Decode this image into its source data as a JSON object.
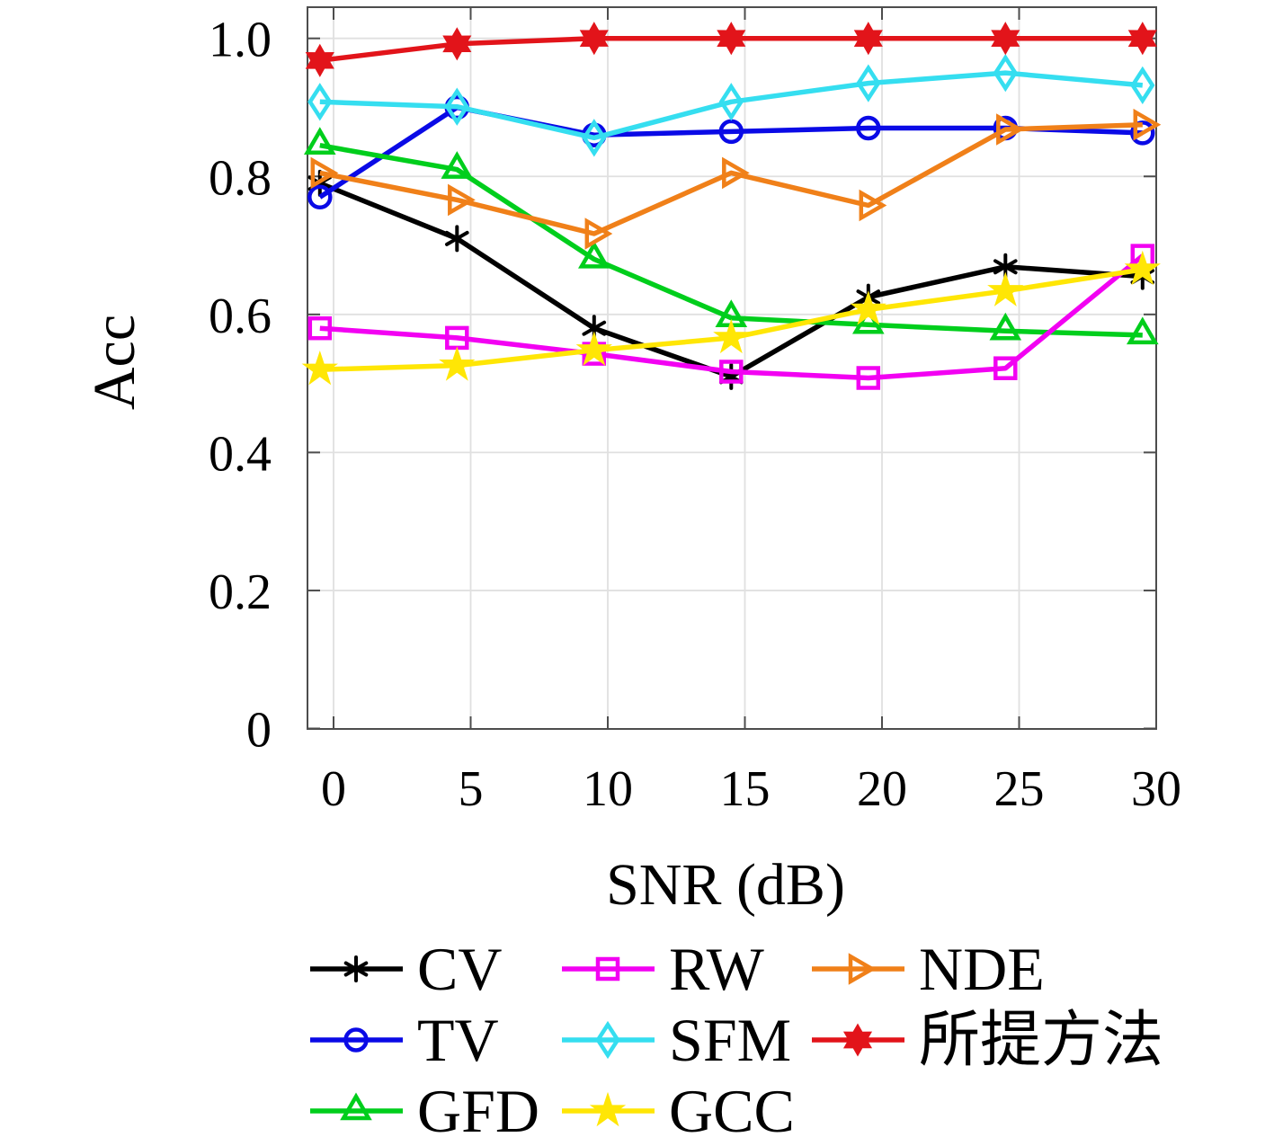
{
  "chart_data": {
    "type": "line",
    "title": "",
    "xlabel": "SNR (dB)",
    "ylabel": "Acc",
    "x": [
      0,
      5,
      10,
      15,
      20,
      25,
      30
    ],
    "x_tick_labels": [
      "0",
      "5",
      "10",
      "15",
      "20",
      "25",
      "30"
    ],
    "y_ticks": [
      0,
      0.2,
      0.4,
      0.6,
      0.8,
      1.0
    ],
    "y_tick_labels": [
      "0",
      "0.2",
      "0.4",
      "0.6",
      "0.8",
      "1.0"
    ],
    "xlim": [
      -1,
      30
    ],
    "ylim": [
      0,
      1.045
    ],
    "x_plot_offset": -0.5,
    "grid": true,
    "legend_position": "below",
    "legend_columns": 3,
    "series": [
      {
        "name": "CV",
        "color": "#000000",
        "marker": "asterisk",
        "values": [
          0.79,
          0.71,
          0.58,
          0.51,
          0.625,
          0.669,
          0.655
        ]
      },
      {
        "name": "TV",
        "color": "#0a0ae6",
        "marker": "circle",
        "values": [
          0.77,
          0.9,
          0.86,
          0.865,
          0.87,
          0.87,
          0.863
        ]
      },
      {
        "name": "GFD",
        "color": "#00ce1c",
        "marker": "triangle-up",
        "values": [
          0.845,
          0.81,
          0.68,
          0.595,
          0.585,
          0.576,
          0.57
        ]
      },
      {
        "name": "RW",
        "color": "#f201f2",
        "marker": "square",
        "values": [
          0.58,
          0.566,
          0.543,
          0.517,
          0.508,
          0.522,
          0.685
        ]
      },
      {
        "name": "SFM",
        "color": "#35def0",
        "marker": "diamond",
        "values": [
          0.908,
          0.901,
          0.856,
          0.908,
          0.935,
          0.95,
          0.932
        ]
      },
      {
        "name": "GCC",
        "color": "#ffe605",
        "marker": "star5",
        "values": [
          0.52,
          0.526,
          0.548,
          0.566,
          0.607,
          0.634,
          0.665
        ]
      },
      {
        "name": "NDE",
        "color": "#f08019",
        "marker": "triangle-right",
        "values": [
          0.805,
          0.766,
          0.717,
          0.805,
          0.758,
          0.868,
          0.875
        ]
      },
      {
        "name": "所提方法",
        "color": "#e2141a",
        "marker": "hexagram",
        "values": [
          0.968,
          0.992,
          1.0,
          1.0,
          1.0,
          1.0,
          1.0
        ]
      }
    ],
    "style": {
      "axis_color": "#4d4d4d",
      "grid_color": "#e0e0e0",
      "text_color": "#000000",
      "background": "#ffffff"
    }
  }
}
